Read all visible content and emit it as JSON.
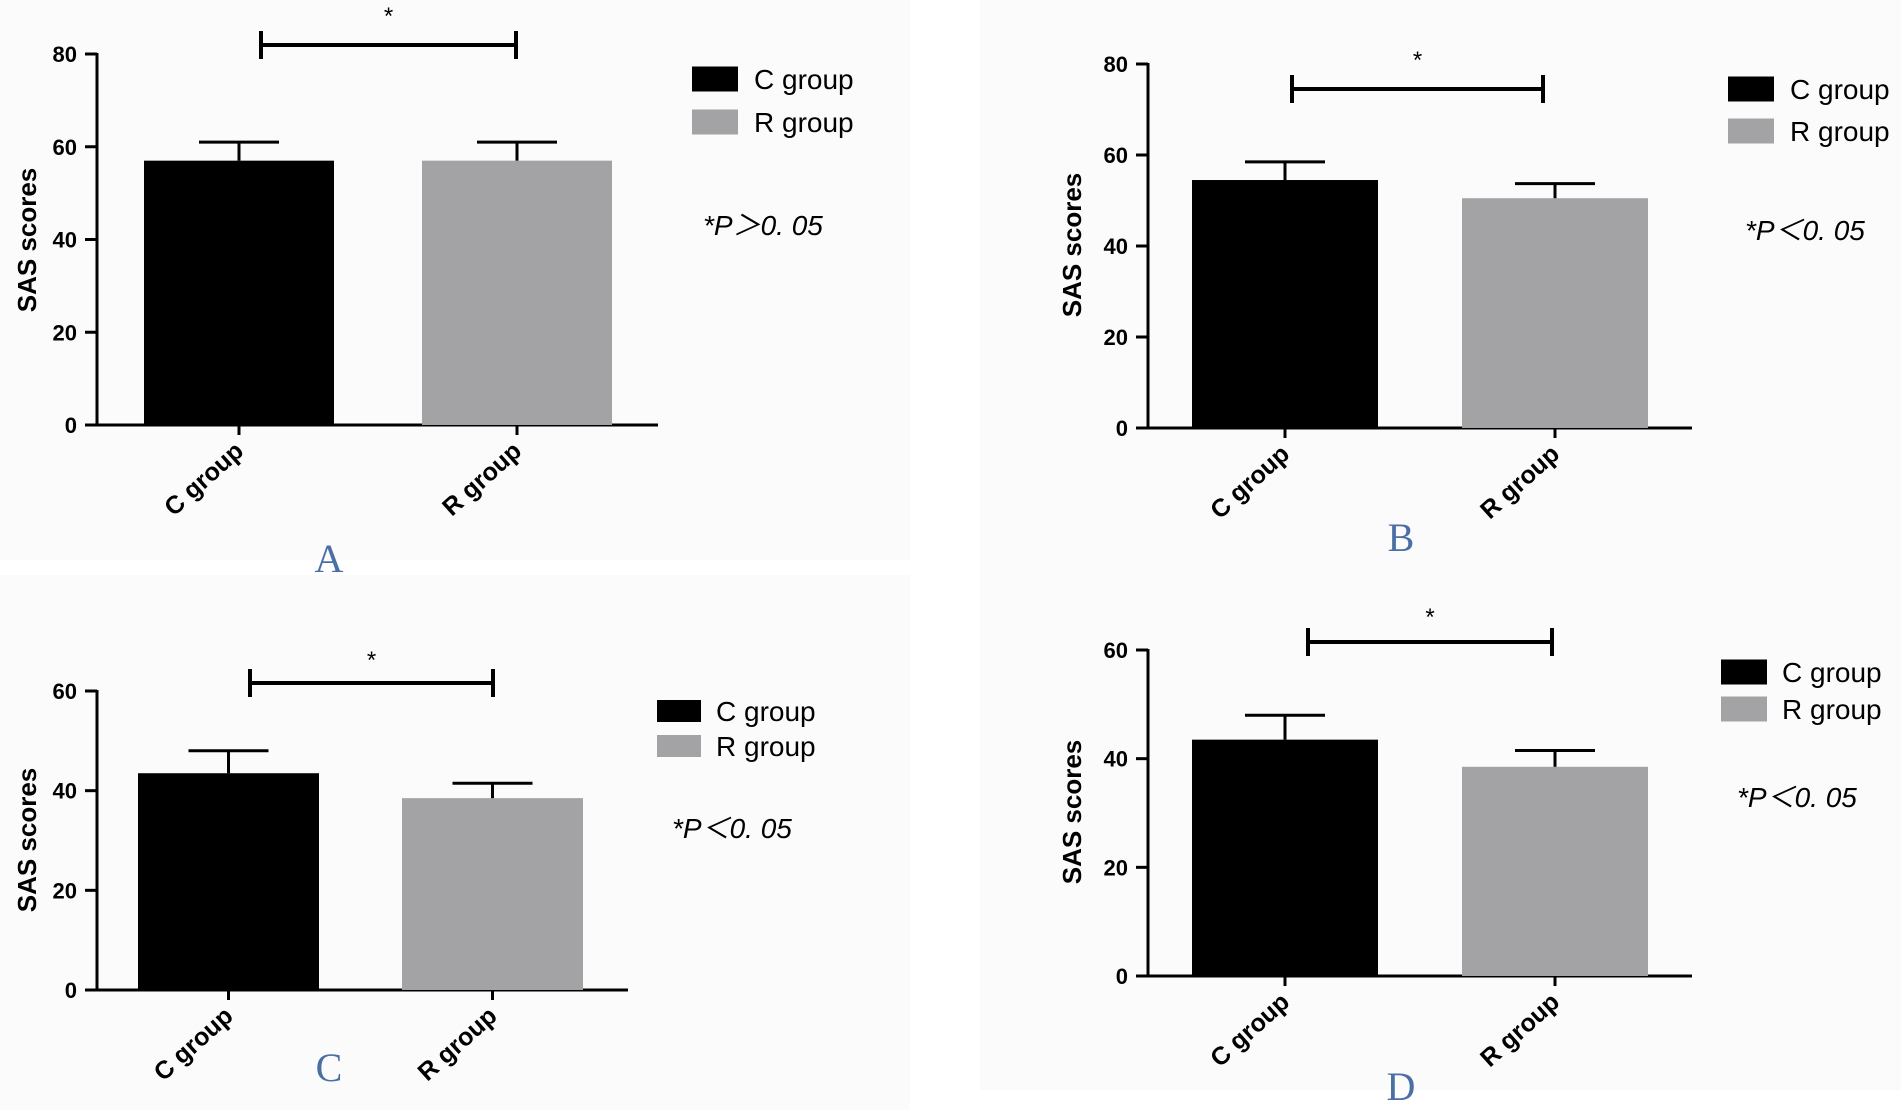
{
  "colors": {
    "c_group": "#000000",
    "r_group": "#a3a3a6",
    "panel_letter": "#4a6fa5",
    "panel_bg": "#fbfbfb"
  },
  "chart_data": [
    {
      "panel": "A",
      "type": "bar",
      "categories": [
        "C group",
        "R group"
      ],
      "values": [
        57,
        57
      ],
      "errors": [
        4,
        4
      ],
      "ylabel": "SAS scores",
      "ylim": [
        0,
        80
      ],
      "yticks": [
        "0",
        "20",
        "40",
        "60",
        "80"
      ],
      "legend": [
        "C group",
        "R group"
      ],
      "significance_marker": "*",
      "p_note": "*P＞0. 05"
    },
    {
      "panel": "B",
      "type": "bar",
      "categories": [
        "C group",
        "R group"
      ],
      "values": [
        54.5,
        50.5
      ],
      "errors": [
        4,
        3.2
      ],
      "ylabel": "SAS scores",
      "ylim": [
        0,
        80
      ],
      "yticks": [
        "0",
        "20",
        "40",
        "60",
        "80"
      ],
      "legend": [
        "C group",
        "R group"
      ],
      "significance_marker": "*",
      "p_note": "*P＜0. 05"
    },
    {
      "panel": "C",
      "type": "bar",
      "categories": [
        "C group",
        "R group"
      ],
      "values": [
        43.5,
        38.5
      ],
      "errors": [
        4.5,
        3
      ],
      "ylabel": "SAS scores",
      "ylim": [
        0,
        60
      ],
      "yticks": [
        "0",
        "20",
        "40",
        "60"
      ],
      "legend": [
        "C group",
        "R group"
      ],
      "significance_marker": "*",
      "p_note": "*P＜0. 05"
    },
    {
      "panel": "D",
      "type": "bar",
      "categories": [
        "C group",
        "R group"
      ],
      "values": [
        43.5,
        38.5
      ],
      "errors": [
        4.5,
        3
      ],
      "ylabel": "SAS scores",
      "ylim": [
        0,
        60
      ],
      "yticks": [
        "0",
        "20",
        "40",
        "60"
      ],
      "legend": [
        "C group",
        "R group"
      ],
      "significance_marker": "*",
      "p_note": "*P＜0. 05"
    }
  ]
}
